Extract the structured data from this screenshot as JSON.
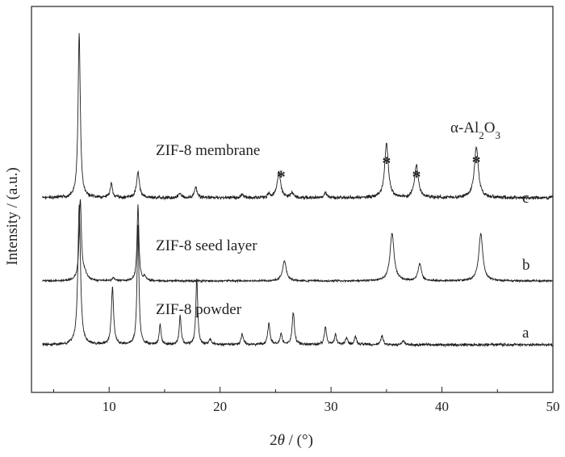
{
  "chart_data": {
    "type": "line",
    "xlabel_prefix": "2",
    "xlabel_symbol": "θ",
    "xlabel_suffix": " / (°)",
    "ylabel": "Intensity / (a.u.)",
    "xlim": [
      3,
      50
    ],
    "xticks": [
      10,
      20,
      30,
      40,
      50
    ],
    "grid": false,
    "phase_label": {
      "alpha": "α-Al",
      "sub1": "2",
      "mid": "O",
      "sub2": "3"
    },
    "stars": [
      25.5,
      35.0,
      37.7,
      43.1
    ],
    "star_symbol": "*",
    "series": [
      {
        "name": "ZIF-8 membrane",
        "tag": "c",
        "baseline": 0.0,
        "peaks": [
          {
            "x": 7.3,
            "h": 10.0,
            "w": 0.12
          },
          {
            "x": 10.2,
            "h": 0.9,
            "w": 0.12
          },
          {
            "x": 12.6,
            "h": 1.6,
            "w": 0.15
          },
          {
            "x": 16.4,
            "h": 0.3,
            "w": 0.12
          },
          {
            "x": 17.8,
            "h": 0.6,
            "w": 0.15
          },
          {
            "x": 22.0,
            "h": 0.2,
            "w": 0.15
          },
          {
            "x": 24.4,
            "h": 0.2,
            "w": 0.15
          },
          {
            "x": 25.3,
            "h": 1.6,
            "w": 0.18
          },
          {
            "x": 26.5,
            "h": 0.3,
            "w": 0.15
          },
          {
            "x": 29.5,
            "h": 0.3,
            "w": 0.15
          },
          {
            "x": 35.0,
            "h": 3.3,
            "w": 0.2
          },
          {
            "x": 37.7,
            "h": 2.0,
            "w": 0.2
          },
          {
            "x": 43.1,
            "h": 3.1,
            "w": 0.22
          }
        ]
      },
      {
        "name": "ZIF-8 seed layer",
        "tag": "b",
        "baseline": 0.0,
        "peaks": [
          {
            "x": 7.4,
            "h": 8.5,
            "w": 0.12
          },
          {
            "x": 7.8,
            "h": 0.7,
            "w": 0.25
          },
          {
            "x": 10.4,
            "h": 0.3,
            "w": 0.15
          },
          {
            "x": 12.6,
            "h": 8.0,
            "w": 0.1
          },
          {
            "x": 13.2,
            "h": 0.4,
            "w": 0.15
          },
          {
            "x": 25.8,
            "h": 2.1,
            "w": 0.2
          },
          {
            "x": 35.5,
            "h": 5.0,
            "w": 0.22
          },
          {
            "x": 38.0,
            "h": 1.8,
            "w": 0.18
          },
          {
            "x": 43.5,
            "h": 5.0,
            "w": 0.22
          }
        ]
      },
      {
        "name": "ZIF-8 powder",
        "tag": "a",
        "baseline": 0.0,
        "peaks": [
          {
            "x": 7.3,
            "h": 10.5,
            "w": 0.14
          },
          {
            "x": 10.3,
            "h": 4.3,
            "w": 0.12
          },
          {
            "x": 12.6,
            "h": 9.0,
            "w": 0.1
          },
          {
            "x": 14.6,
            "h": 1.5,
            "w": 0.1
          },
          {
            "x": 16.4,
            "h": 2.2,
            "w": 0.1
          },
          {
            "x": 17.9,
            "h": 5.0,
            "w": 0.1
          },
          {
            "x": 19.1,
            "h": 0.4,
            "w": 0.12
          },
          {
            "x": 22.0,
            "h": 0.8,
            "w": 0.12
          },
          {
            "x": 24.4,
            "h": 1.6,
            "w": 0.12
          },
          {
            "x": 25.5,
            "h": 0.8,
            "w": 0.12
          },
          {
            "x": 26.6,
            "h": 2.4,
            "w": 0.12
          },
          {
            "x": 29.5,
            "h": 1.3,
            "w": 0.12
          },
          {
            "x": 30.4,
            "h": 0.7,
            "w": 0.12
          },
          {
            "x": 31.4,
            "h": 0.5,
            "w": 0.12
          },
          {
            "x": 32.2,
            "h": 0.6,
            "w": 0.12
          },
          {
            "x": 34.6,
            "h": 0.7,
            "w": 0.12
          },
          {
            "x": 36.5,
            "h": 0.3,
            "w": 0.12
          }
        ]
      }
    ]
  }
}
